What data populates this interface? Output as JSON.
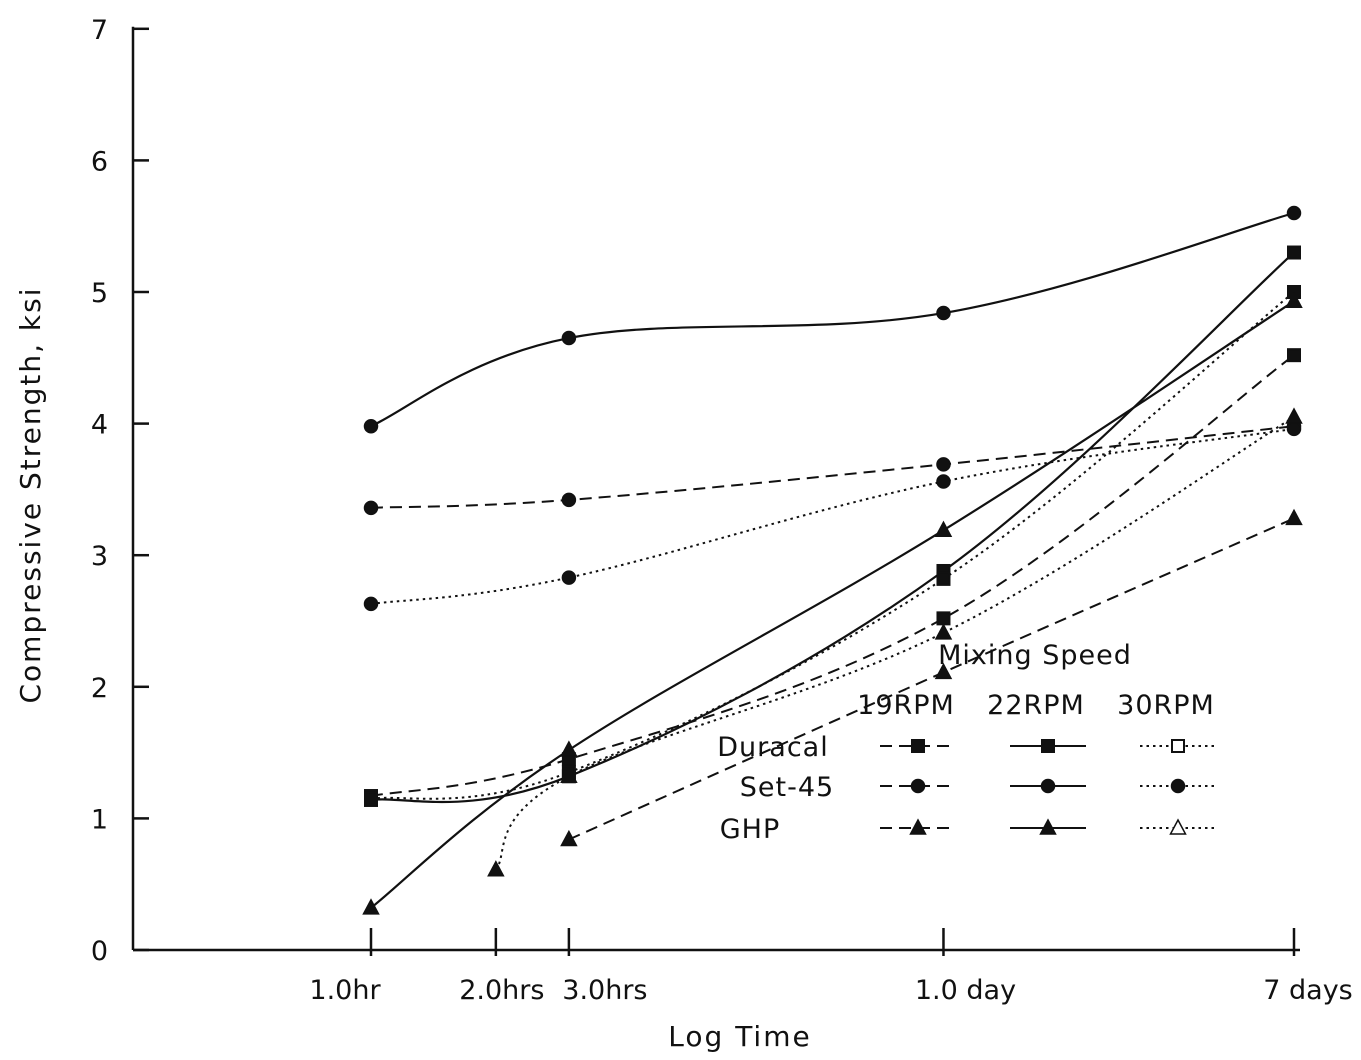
{
  "chart_data": {
    "type": "line",
    "xlabel": "Log Time",
    "ylabel": "Compressive Strength, ksi",
    "x_scale": "log",
    "x_unit": "hours",
    "ylim": [
      0,
      7
    ],
    "y_ticks": [
      0,
      1,
      2,
      3,
      4,
      5,
      6,
      7
    ],
    "x_ticks": [
      {
        "value": 1,
        "label": "1.0hr"
      },
      {
        "value": 2,
        "label": "2.0hrs"
      },
      {
        "value": 3,
        "label": "3.0hrs"
      },
      {
        "value": 24,
        "label": "1.0 day"
      },
      {
        "value": 168,
        "label": "7 days"
      }
    ],
    "legend": {
      "title": "Mixing Speed",
      "columns": [
        "19RPM",
        "22RPM",
        "30RPM"
      ],
      "rows": [
        "Duracal",
        "Set-45",
        "GHP"
      ],
      "placement": "bottom-right"
    },
    "series": [
      {
        "name": "Duracal 19RPM",
        "material": "Duracal",
        "speed": "19RPM",
        "marker": "square",
        "dash": "dashed",
        "x": [
          1,
          3,
          24,
          168
        ],
        "y": [
          1.17,
          1.45,
          2.52,
          4.52
        ]
      },
      {
        "name": "Duracal 22RPM",
        "material": "Duracal",
        "speed": "22RPM",
        "marker": "square",
        "dash": "solid",
        "x": [
          1,
          3,
          24,
          168
        ],
        "y": [
          1.14,
          1.32,
          2.88,
          5.3
        ]
      },
      {
        "name": "Duracal 30RPM",
        "material": "Duracal",
        "speed": "30RPM",
        "marker": "square",
        "dash": "dotted",
        "x": [
          1,
          3,
          24,
          168
        ],
        "y": [
          1.15,
          1.35,
          2.82,
          5.0
        ]
      },
      {
        "name": "Set-45 19RPM",
        "material": "Set-45",
        "speed": "19RPM",
        "marker": "circle",
        "dash": "dashed",
        "x": [
          1,
          3,
          24,
          168
        ],
        "y": [
          3.36,
          3.42,
          3.69,
          3.98
        ]
      },
      {
        "name": "Set-45 22RPM",
        "material": "Set-45",
        "speed": "22RPM",
        "marker": "circle",
        "dash": "solid",
        "x": [
          1,
          3,
          24,
          168
        ],
        "y": [
          3.98,
          4.65,
          4.84,
          5.6
        ]
      },
      {
        "name": "Set-45 30RPM",
        "material": "Set-45",
        "speed": "30RPM",
        "marker": "circle",
        "dash": "dotted",
        "x": [
          1,
          3,
          24,
          168
        ],
        "y": [
          2.63,
          2.83,
          3.56,
          3.96
        ]
      },
      {
        "name": "GHP 19RPM",
        "material": "GHP",
        "speed": "19RPM",
        "marker": "triangle",
        "dash": "dashed",
        "x": [
          3,
          24,
          168
        ],
        "y": [
          0.84,
          2.11,
          3.28
        ]
      },
      {
        "name": "GHP 22RPM",
        "material": "GHP",
        "speed": "22RPM",
        "marker": "triangle",
        "dash": "solid",
        "x": [
          1,
          3,
          24,
          168
        ],
        "y": [
          0.32,
          1.52,
          3.19,
          4.93
        ]
      },
      {
        "name": "GHP 30RPM",
        "material": "GHP",
        "speed": "30RPM",
        "marker": "triangle",
        "dash": "dotted",
        "x": [
          2,
          3,
          24,
          168
        ],
        "y": [
          0.61,
          1.32,
          2.41,
          4.05
        ]
      }
    ]
  }
}
